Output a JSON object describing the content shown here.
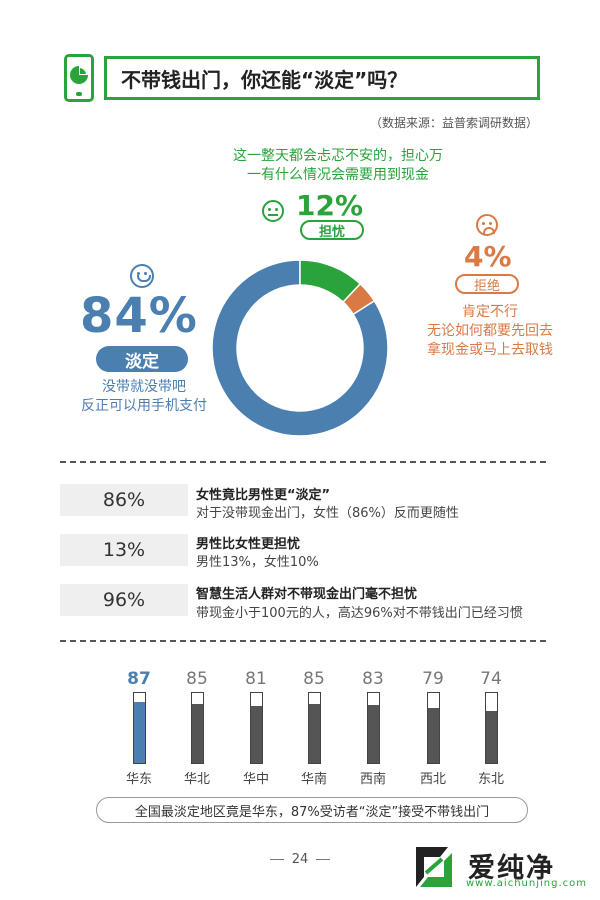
{
  "header": {
    "title": "不带钱出门，你还能“淡定”吗？",
    "source": "（数据来源：益普索调研数据）"
  },
  "donut": {
    "calm": {
      "pct": "84%",
      "label": "淡定",
      "note1": "没带就没带吧",
      "note2": "反正可以用手机支付",
      "color": "#4a7fb0"
    },
    "worry": {
      "pct": "12%",
      "label": "担忧",
      "note1": "这一整天都会忐忑不安的，担心万",
      "note2": "一有什么情况会需要用到现金",
      "color": "#2aa33a"
    },
    "refuse": {
      "pct": "4%",
      "label": "拒绝",
      "note1": "肯定不行",
      "note2": "无论如何都要先回去",
      "note3": "拿现金或马上去取钱",
      "color": "#d97a45"
    }
  },
  "stats": [
    {
      "value": "86%",
      "title": "女性竟比男性更“淡定”",
      "desc": "对于没带现金出门，女性（86%）反而更随性"
    },
    {
      "value": "13%",
      "title": "男性比女性更担忧",
      "desc": "男性13%，女性10%"
    },
    {
      "value": "96%",
      "title": "智慧生活人群对不带现金出门毫不担忧",
      "desc": "带现金小于100元的人，高达96%对不带钱出门已经习惯"
    }
  ],
  "summary": "全国最淡定地区竟是华东，87%受访者“淡定”接受不带钱出门",
  "page_number": "24",
  "watermark": {
    "name": "爱纯净",
    "url": "www.aichunjing.com"
  },
  "chart_data": [
    {
      "type": "pie",
      "categories": [
        "淡定",
        "担忧",
        "拒绝"
      ],
      "values": [
        84,
        12,
        4
      ],
      "colors": [
        "#4a7fb0",
        "#2aa33a",
        "#d97a45"
      ]
    },
    {
      "type": "bar",
      "categories": [
        "华东",
        "华北",
        "华中",
        "华南",
        "西南",
        "西北",
        "东北"
      ],
      "values": [
        87,
        85,
        81,
        85,
        83,
        79,
        74
      ],
      "ylim": [
        0,
        100
      ],
      "highlight": "华东",
      "highlight_color": "#4a7fb0",
      "bar_color": "#555555"
    }
  ]
}
